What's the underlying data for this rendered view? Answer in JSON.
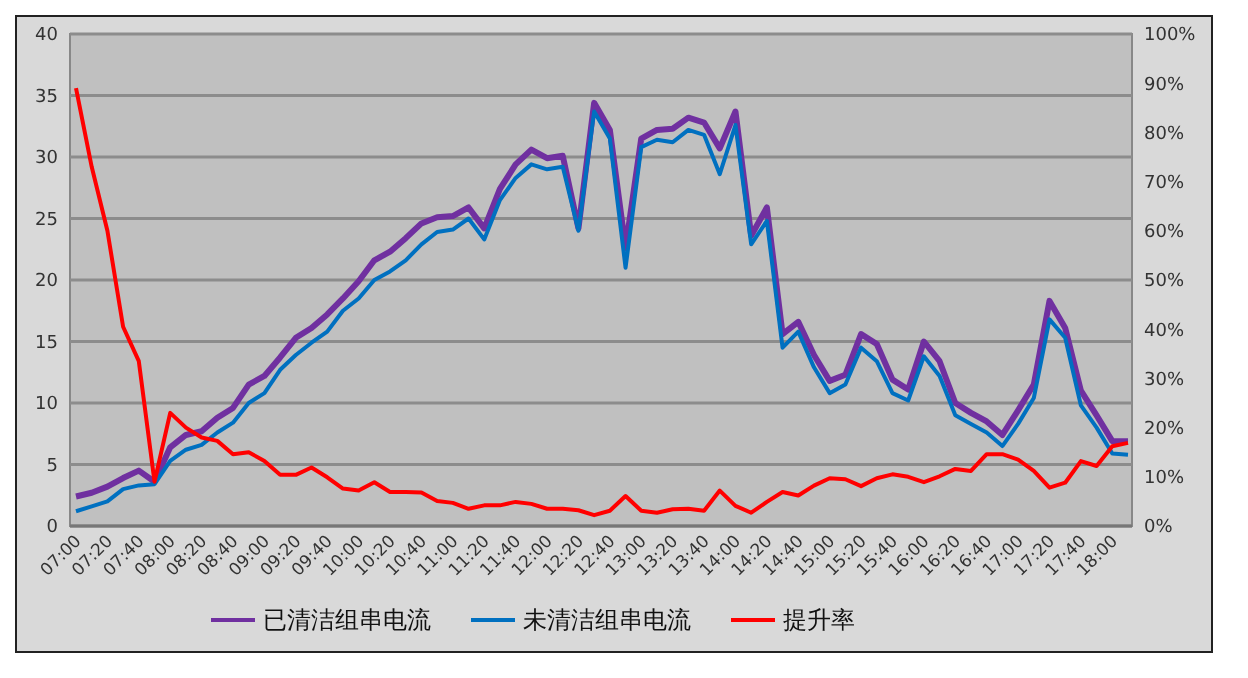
{
  "chart_data": {
    "type": "line",
    "categories": [
      "07:00",
      null,
      "07:20",
      null,
      "07:40",
      null,
      "08:00",
      null,
      "08:20",
      null,
      "08:40",
      null,
      "09:00",
      null,
      "09:20",
      null,
      "09:40",
      null,
      "10:00",
      null,
      "10:20",
      null,
      "10:40",
      null,
      "11:00",
      null,
      "11:20",
      null,
      "11:40",
      null,
      "12:00",
      null,
      "12:20",
      null,
      "12:40",
      null,
      "13:00",
      null,
      "13:20",
      null,
      "13:40",
      null,
      "14:00",
      null,
      "14:20",
      null,
      "14:40",
      null,
      "15:00",
      null,
      "15:20",
      null,
      "15:40",
      null,
      "16:00",
      null,
      "16:20",
      null,
      "16:40",
      null,
      "17:00",
      null,
      "17:20",
      null,
      "17:40",
      null,
      "18:00",
      null
    ],
    "series": [
      {
        "name": "已清洁组串电流",
        "color": "#7030a0",
        "values": [
          2.4,
          2.7,
          3.2,
          3.9,
          4.5,
          3.6,
          6.4,
          7.4,
          7.7,
          8.8,
          9.6,
          11.5,
          12.2,
          13.7,
          15.3,
          16.1,
          17.2,
          18.5,
          19.9,
          21.6,
          22.3,
          23.4,
          24.6,
          25.1,
          25.2,
          25.9,
          24.2,
          27.4,
          29.4,
          30.6,
          29.9,
          30.1,
          24.2,
          34.4,
          32.2,
          22.6,
          31.5,
          32.2,
          32.3,
          33.2,
          32.8,
          30.7,
          33.7,
          23.6,
          25.9,
          15.6,
          16.6,
          13.9,
          11.8,
          12.3,
          15.6,
          14.8,
          11.9,
          11.1,
          15.0,
          13.4,
          10.0,
          9.2,
          8.5,
          7.4,
          9.4,
          11.5,
          18.3,
          16.1,
          11.0,
          9.0,
          6.9,
          6.9
        ]
      },
      {
        "name": "未清洁组串电流",
        "color": "#0070c0",
        "values": [
          1.2,
          1.6,
          2.0,
          3.0,
          3.3,
          3.4,
          5.3,
          6.2,
          6.6,
          7.6,
          8.4,
          10.0,
          10.8,
          12.7,
          13.9,
          14.9,
          15.8,
          17.5,
          18.5,
          20.0,
          20.7,
          21.6,
          22.9,
          23.9,
          24.1,
          25.0,
          23.3,
          26.5,
          28.3,
          29.4,
          29.0,
          29.2,
          24.0,
          33.7,
          31.5,
          21.0,
          30.8,
          31.4,
          31.2,
          32.2,
          31.8,
          28.6,
          32.6,
          22.9,
          24.8,
          14.5,
          15.8,
          12.9,
          10.8,
          11.5,
          14.5,
          13.4,
          10.8,
          10.2,
          13.8,
          12.2,
          9.0,
          8.3,
          7.6,
          6.5,
          8.3,
          10.4,
          16.8,
          15.3,
          9.8,
          8.0,
          5.9,
          5.8
        ]
      },
      {
        "name": "提升率",
        "color": "#ff0000",
        "axis": "y2",
        "values": [
          89,
          73,
          60,
          40.5,
          33.5,
          9,
          23,
          20,
          18,
          17.3,
          14.6,
          15,
          13.2,
          10.4,
          10.4,
          11.9,
          9.9,
          7.6,
          7.2,
          8.9,
          6.9,
          6.9,
          6.8,
          5.1,
          4.7,
          3.5,
          4.2,
          4.2,
          4.9,
          4.5,
          3.5,
          3.5,
          3.2,
          2.2,
          3.1,
          6.1,
          3.1,
          2.7,
          3.4,
          3.5,
          3.1,
          7.2,
          4.1,
          2.7,
          4.9,
          6.9,
          6.2,
          8.2,
          9.7,
          9.5,
          8.1,
          9.7,
          10.5,
          10.0,
          8.9,
          10.1,
          11.6,
          11.2,
          14.6,
          14.6,
          13.5,
          11.2,
          7.8,
          8.8,
          13.2,
          12.2,
          16.2,
          16.9
        ]
      }
    ],
    "ylim": [
      0,
      40
    ],
    "yticks": [
      0,
      5,
      10,
      15,
      20,
      25,
      30,
      35,
      40
    ],
    "y2lim": [
      0,
      100
    ],
    "y2ticks": [
      {
        "value": 0,
        "label": "0%"
      },
      {
        "value": 10,
        "label": "10%"
      },
      {
        "value": 20,
        "label": "20%"
      },
      {
        "value": 30,
        "label": "30%"
      },
      {
        "value": 40,
        "label": "40%"
      },
      {
        "value": 50,
        "label": "50%"
      },
      {
        "value": 60,
        "label": "60%"
      },
      {
        "value": 70,
        "label": "70%"
      },
      {
        "value": 80,
        "label": "80%"
      },
      {
        "value": 90,
        "label": "90%"
      },
      {
        "value": 100,
        "label": "100%"
      }
    ],
    "grid": "y",
    "legend": "bottom",
    "marker": "none",
    "line_style": "solid"
  }
}
